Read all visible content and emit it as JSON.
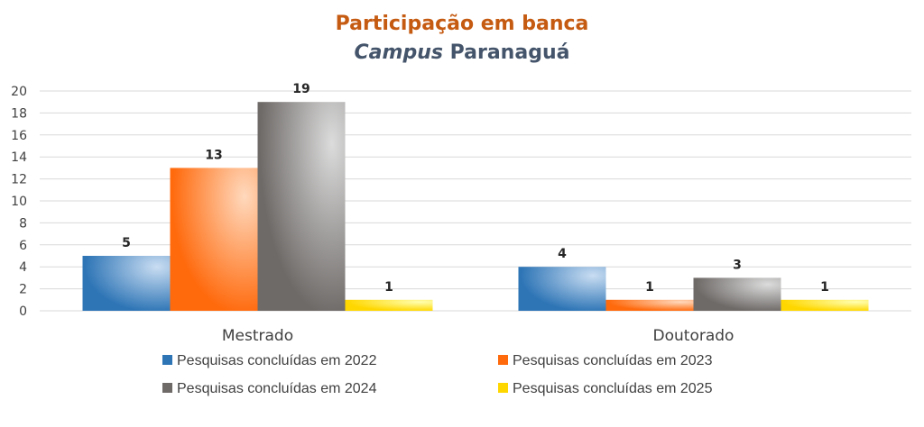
{
  "chart_data": {
    "type": "bar",
    "title": "Participação  em banca",
    "subtitle_italic": "Campus",
    "subtitle_rest": " Paranaguá",
    "categories": [
      "Mestrado",
      "Doutorado"
    ],
    "series": [
      {
        "name": "Pesquisas concluídas em 2022",
        "values": [
          5,
          4
        ],
        "color": "#2e75b6"
      },
      {
        "name": "Pesquisas concluídas em 2023",
        "values": [
          13,
          1
        ],
        "color": "#f4701c"
      },
      {
        "name": "Pesquisas concluídas em 2024",
        "values": [
          19,
          3
        ],
        "color": "#8c8c8c"
      },
      {
        "name": "Pesquisas concluídas em 2025",
        "values": [
          1,
          1
        ],
        "color": "#ffd700"
      }
    ],
    "yticks": [
      0,
      2,
      4,
      6,
      8,
      10,
      12,
      14,
      16,
      18,
      20
    ],
    "ylim": [
      0,
      20
    ],
    "grid": true,
    "legend": "bottom"
  }
}
